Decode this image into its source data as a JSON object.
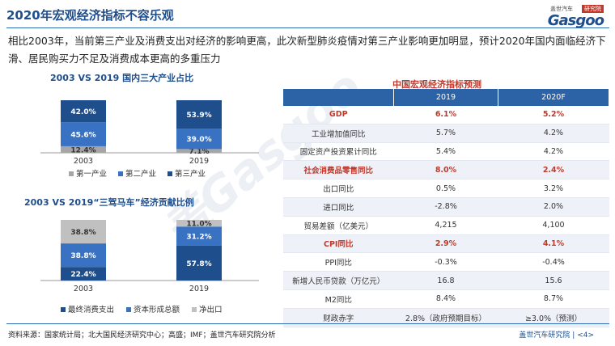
{
  "header": {
    "title": "2020年宏观经济指标不容乐观",
    "logo_tag_left": "盖世汽车",
    "logo_tag_right": "研究院",
    "logo_brand": "Gasgoo"
  },
  "lead_text": "相比2003年，当前第三产业及消费支出对经济的影响更高，此次新型肺炎疫情对第三产业影响更加明显，预计2020年国内面临经济下滑、居民购买力不足及消费成本更高的多重压力",
  "watermark": "盖Gasgoo",
  "colors": {
    "dark_blue": "#1f4e8c",
    "mid_blue": "#3a72c3",
    "gray": "#a6a6a6",
    "red": "#c0392b"
  },
  "chart_data": [
    {
      "type": "bar",
      "title": "2003 VS 2019 国内三大产业占比",
      "stacked": true,
      "categories": [
        "2003",
        "2019"
      ],
      "series": [
        {
          "name": "第一产业",
          "values": [
            12.4,
            7.1
          ],
          "color": "#a6a6a6"
        },
        {
          "name": "第二产业",
          "values": [
            45.6,
            39.0
          ],
          "color": "#3a72c3"
        },
        {
          "name": "第三产业",
          "values": [
            42.0,
            53.9
          ],
          "color": "#1f4e8c"
        }
      ],
      "labels": [
        [
          "12.4%",
          "7.1%"
        ],
        [
          "45.6%",
          "39.0%"
        ],
        [
          "42.0%",
          "53.9%"
        ]
      ],
      "legend_position": "bottom"
    },
    {
      "type": "bar",
      "title": "2003 VS 2019“三驾马车”经济贡献比例",
      "stacked": true,
      "categories": [
        "2003",
        "2019"
      ],
      "series": [
        {
          "name": "最终消费支出",
          "values": [
            22.4,
            57.8
          ],
          "color": "#1f4e8c"
        },
        {
          "name": "资本形成总额",
          "values": [
            38.8,
            31.2
          ],
          "color": "#3a72c3"
        },
        {
          "name": "净出口",
          "values": [
            38.8,
            11.0
          ],
          "color": "#c0c0c0"
        }
      ],
      "labels": [
        [
          "22.4%",
          "57.8%"
        ],
        [
          "38.8%",
          "31.2%"
        ],
        [
          "38.8%",
          "11.0%"
        ]
      ],
      "legend_position": "bottom"
    }
  ],
  "table": {
    "title": "中国宏观经济指标预测",
    "headers": [
      "",
      "2019",
      "2020F"
    ],
    "rows": [
      {
        "label": "GDP",
        "v2019": "6.1%",
        "v2020": "5.2%",
        "highlight": true
      },
      {
        "label": "工业增加值同比",
        "v2019": "5.7%",
        "v2020": "4.2%",
        "highlight": false
      },
      {
        "label": "固定资产投资累计同比",
        "v2019": "5.4%",
        "v2020": "4.2%",
        "highlight": false
      },
      {
        "label": "社会消费品零售同比",
        "v2019": "8.0%",
        "v2020": "2.4%",
        "highlight": true
      },
      {
        "label": "出口同比",
        "v2019": "0.5%",
        "v2020": "3.2%",
        "highlight": false
      },
      {
        "label": "进口同比",
        "v2019": "-2.8%",
        "v2020": "2.0%",
        "highlight": false
      },
      {
        "label": "贸易差额（亿美元）",
        "v2019": "4,215",
        "v2020": "4,100",
        "highlight": false
      },
      {
        "label": "CPI同比",
        "v2019": "2.9%",
        "v2020": "4.1%",
        "highlight": true
      },
      {
        "label": "PPI同比",
        "v2019": "-0.3%",
        "v2020": "-0.4%",
        "highlight": false
      },
      {
        "label": "新增人民币贷款（万亿元）",
        "v2019": "16.8",
        "v2020": "15.6",
        "highlight": false
      },
      {
        "label": "M2同比",
        "v2019": "8.4%",
        "v2020": "8.7%",
        "highlight": false
      },
      {
        "label": "财政赤字",
        "v2019": "2.8%（政府预期目标）",
        "v2020": "≥3.0%（预测）",
        "highlight": false
      }
    ]
  },
  "footer": {
    "source": "资料来源：国家统计局；北大国民经济研究中心；高盛；IMF；盖世汽车研究院分析",
    "org": "盖世汽车研究院",
    "page": "<4>"
  }
}
